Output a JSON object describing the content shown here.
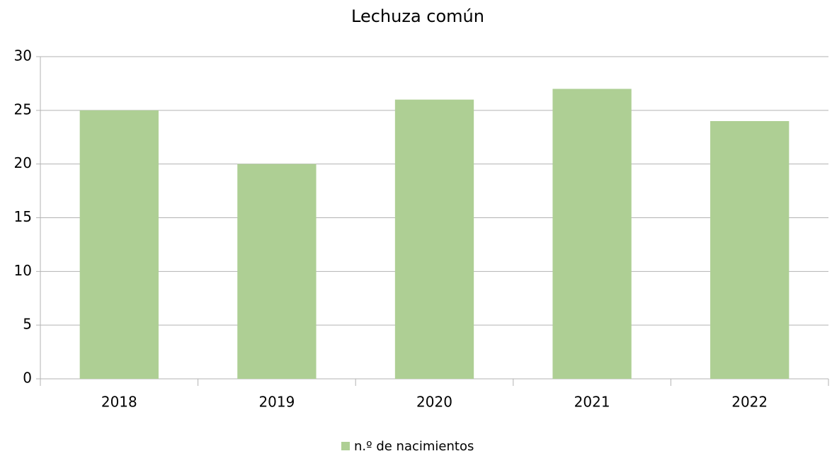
{
  "chart_data": {
    "type": "bar",
    "title": "Lechuza común",
    "categories": [
      "2018",
      "2019",
      "2020",
      "2021",
      "2022"
    ],
    "series": [
      {
        "name": "n.º de nacimientos",
        "color": "#aecf94",
        "values": [
          25,
          20,
          26,
          27,
          24
        ]
      }
    ],
    "ylim": [
      0,
      30
    ],
    "yticks": [
      0,
      5,
      10,
      15,
      20,
      25,
      30
    ],
    "grid": true,
    "legend": "bottom"
  }
}
